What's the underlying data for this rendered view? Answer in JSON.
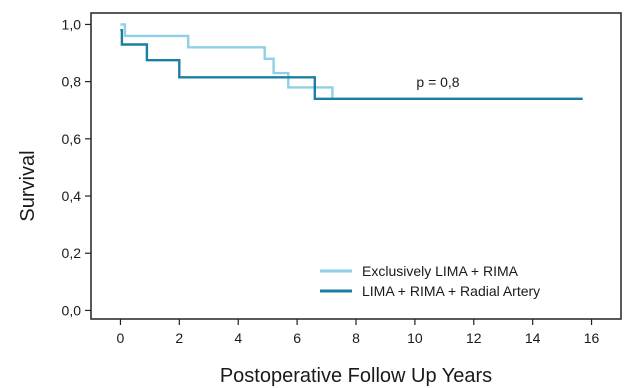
{
  "chart_data": {
    "type": "line",
    "xlabel": "Postoperative Follow Up Years",
    "ylabel": "Survival",
    "xlim": [
      -1,
      17
    ],
    "ylim": [
      -0.03,
      1.04
    ],
    "xticks": [
      0,
      2,
      4,
      6,
      8,
      10,
      12,
      14,
      16
    ],
    "xtick_labels": [
      "0",
      "2",
      "4",
      "6",
      "8",
      "10",
      "12",
      "14",
      "16"
    ],
    "yticks": [
      0.0,
      0.2,
      0.4,
      0.6,
      0.8,
      1.0
    ],
    "ytick_labels": [
      "0,0",
      "0,2",
      "0,4",
      "0,6",
      "0,8",
      "1,0"
    ],
    "grid": false,
    "legend_position": "bottom-right",
    "annotation": "p = 0,8",
    "series": [
      {
        "name": "Exclusively LIMA + RIMA",
        "color": "#8fd0e6",
        "step": true,
        "x": [
          0,
          0.15,
          2.3,
          4.9,
          5.2,
          5.7,
          6.9,
          7.2,
          15.7
        ],
        "y": [
          1.0,
          0.96,
          0.92,
          0.88,
          0.83,
          0.78,
          0.78,
          0.74,
          0.74
        ]
      },
      {
        "name": "LIMA + RIMA + Radial Artery",
        "color": "#1c7fa0",
        "step": true,
        "x": [
          0,
          0.05,
          0.9,
          2.0,
          6.6,
          15.7
        ],
        "y": [
          0.98,
          0.93,
          0.875,
          0.815,
          0.74,
          0.74
        ]
      }
    ]
  }
}
